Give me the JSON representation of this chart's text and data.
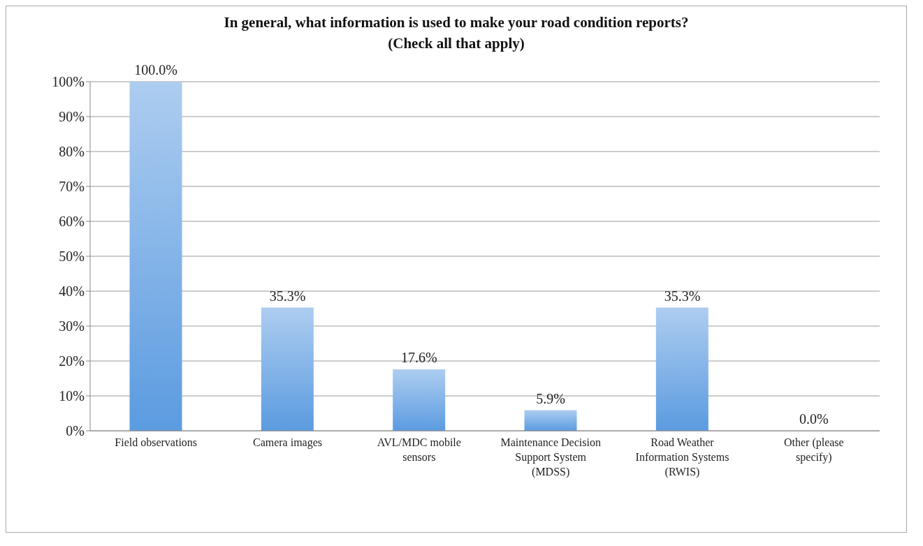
{
  "chart_data": {
    "type": "bar",
    "title": "In general, what information is used to make your road condition reports?\n(Check all that apply)",
    "categories": [
      "Field observations",
      "Camera images",
      "AVL/MDC mobile sensors",
      "Maintenance Decision Support System (MDSS)",
      "Road Weather Information Systems (RWIS)",
      "Other (please specify)"
    ],
    "values": [
      100,
      35.3,
      17.6,
      5.9,
      35.3,
      0
    ],
    "value_labels": [
      "100.0%",
      "35.3%",
      "17.6%",
      "5.9%",
      "35.3%",
      "0.0%"
    ],
    "color": "#5b9be0",
    "ylim": [
      0,
      100
    ],
    "yticks": [
      {
        "value": 0,
        "label": "0%"
      },
      {
        "value": 10,
        "label": "10%"
      },
      {
        "value": 20,
        "label": "20%"
      },
      {
        "value": 30,
        "label": "30%"
      },
      {
        "value": 40,
        "label": "40%"
      },
      {
        "value": 50,
        "label": "50%"
      },
      {
        "value": 60,
        "label": "60%"
      },
      {
        "value": 70,
        "label": "70%"
      },
      {
        "value": 80,
        "label": "80%"
      },
      {
        "value": 90,
        "label": "90%"
      },
      {
        "value": 100,
        "label": "100%"
      }
    ],
    "grid": "y"
  }
}
